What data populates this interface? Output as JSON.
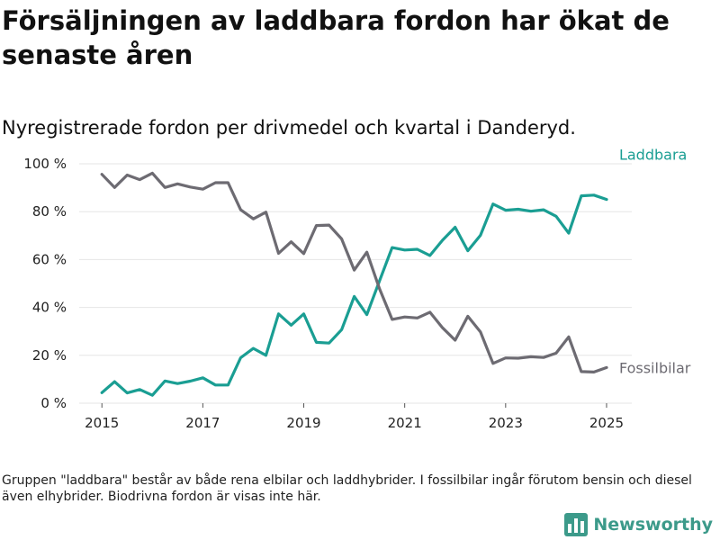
{
  "title": "Försäljningen av laddbara fordon har ökat de senaste åren",
  "subtitle": "Nyregistrerade fordon per drivmedel och kvartal i Danderyd.",
  "footnote": "Gruppen \"laddbara\" består av både rena elbilar och laddhybrider. I fossilbilar ingår förutom bensin och diesel även elhybrider. Biodrivna fordon är visas inte här.",
  "brand": {
    "name": "Newsworthy",
    "color": "#3c9a8a"
  },
  "chart_data": {
    "type": "line",
    "title": "Försäljningen av laddbara fordon har ökat de senaste åren",
    "subtitle": "Nyregistrerade fordon per drivmedel och kvartal i Danderyd.",
    "xlabel": "",
    "ylabel": "",
    "xlim": [
      2014.55,
      2025.5
    ],
    "ylim": [
      0,
      100
    ],
    "x_ticks": [
      2015,
      2017,
      2019,
      2021,
      2023,
      2025
    ],
    "x_tick_labels": [
      "2015",
      "2017",
      "2019",
      "2021",
      "2023",
      "2025"
    ],
    "y_ticks": [
      0,
      20,
      40,
      60,
      80,
      100
    ],
    "y_tick_labels": [
      "0 %",
      "20 %",
      "40 %",
      "60 %",
      "80 %",
      "100 %"
    ],
    "grid": "horizontal",
    "x": [
      2015.0,
      2015.25,
      2015.5,
      2015.75,
      2016.0,
      2016.25,
      2016.5,
      2016.75,
      2017.0,
      2017.25,
      2017.5,
      2017.75,
      2018.0,
      2018.25,
      2018.5,
      2018.75,
      2019.0,
      2019.25,
      2019.5,
      2019.75,
      2020.0,
      2020.25,
      2020.5,
      2020.75,
      2021.0,
      2021.25,
      2021.5,
      2021.75,
      2022.0,
      2022.25,
      2022.5,
      2022.75,
      2023.0,
      2023.25,
      2023.5,
      2023.75,
      2024.0,
      2024.25,
      2024.5,
      2024.75,
      2025.0
    ],
    "series": [
      {
        "name": "Laddbara",
        "color": "#1a9e93",
        "values": [
          4.4,
          9.0,
          4.3,
          5.7,
          3.3,
          9.3,
          8.2,
          9.2,
          10.6,
          7.6,
          7.6,
          19.0,
          22.9,
          20.0,
          37.3,
          32.6,
          37.3,
          25.4,
          25.1,
          30.7,
          44.6,
          37.0,
          51.0,
          65.0,
          64.0,
          64.3,
          61.7,
          68.1,
          73.5,
          63.7,
          70.1,
          83.2,
          80.6,
          81.0,
          80.2,
          80.8,
          78.1,
          71.0,
          86.6,
          86.9,
          85.1
        ]
      },
      {
        "name": "Fossilbilar",
        "color": "#6d6b72",
        "values": [
          95.6,
          90.1,
          95.3,
          93.4,
          96.1,
          90.1,
          91.6,
          90.3,
          89.4,
          92.1,
          92.1,
          80.8,
          77.0,
          79.8,
          62.6,
          67.4,
          62.5,
          74.2,
          74.4,
          68.6,
          55.6,
          63.1,
          47.9,
          35.0,
          36.0,
          35.6,
          38.0,
          31.5,
          26.3,
          36.3,
          29.8,
          16.6,
          18.9,
          18.8,
          19.4,
          19.1,
          20.9,
          27.7,
          13.2,
          13.0,
          14.9
        ]
      }
    ]
  }
}
